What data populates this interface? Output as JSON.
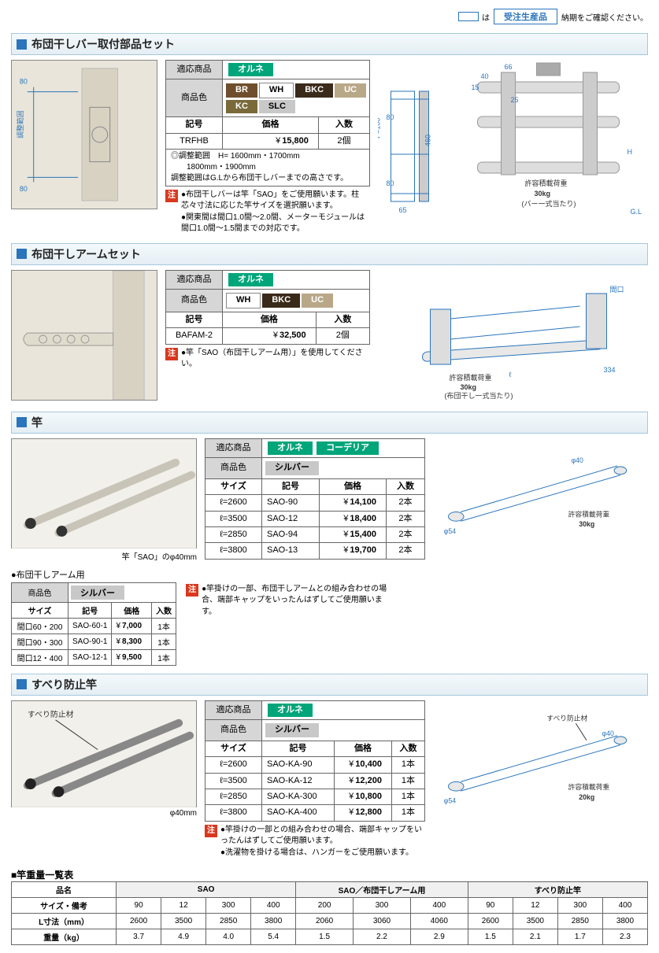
{
  "topNote": {
    "pre": "は",
    "tag": "受注生産品",
    "post": "納期をご確認ください。"
  },
  "sec1": {
    "title": "布団干しバー取付部品セット",
    "applicableLabel": "適応商品",
    "applicable": [
      "オルネ"
    ],
    "colorLabel": "商品色",
    "colors": [
      "BR",
      "WH",
      "BKC",
      "UC",
      "KC",
      "SLC"
    ],
    "colorClasses": [
      "brown",
      "white",
      "dark",
      "beige",
      "khaki",
      "silver"
    ],
    "cols": [
      "記号",
      "価格",
      "入数"
    ],
    "row": {
      "code": "TRFHB",
      "price": "15,800",
      "qty": "2個"
    },
    "range": {
      "label": "◎調整範囲",
      "vals": "H= 1600mm・1700mm\n　　1800mm・1900mm",
      "sub": "調整範囲はG.Lから布団干しバーまでの高さです。"
    },
    "notes": [
      "布団干しバーは竿「SAO」をご使用願います。柱芯々寸法に応じた竿サイズを選択願います。",
      "関東間は間口1.0間～2.0間、メーターモジュールは間口1.0間～1.5間までの対応です。"
    ],
    "dims": {
      "a": "80",
      "b": "80",
      "c": "調整範囲"
    },
    "diag": {
      "w1": "66",
      "w2": "40",
      "w3": "15",
      "w4": "25",
      "h1": "80",
      "h2": "P=100",
      "h3": "460",
      "h4": "80",
      "h5": "65",
      "load": "許容積載荷重",
      "loadV": "30kg",
      "loadNote": "(バー一式当たり)",
      "gl": "G.L",
      "h": "H"
    }
  },
  "sec2": {
    "title": "布団干しアームセット",
    "applicableLabel": "適応商品",
    "applicable": [
      "オルネ"
    ],
    "colorLabel": "商品色",
    "colors": [
      "WH",
      "BKC",
      "UC"
    ],
    "colorClasses": [
      "white",
      "dark",
      "beige"
    ],
    "cols": [
      "記号",
      "価格",
      "入数"
    ],
    "row": {
      "code": "BAFAM-2",
      "price": "32,500",
      "qty": "2個"
    },
    "notes": [
      "竿「SAO（布団干しアーム用）」を使用してください。"
    ],
    "diag": {
      "len": "ℓ",
      "depth": "334",
      "width": "間口",
      "load": "許容積載荷重",
      "loadV": "30kg",
      "loadNote": "(布団干し一式当たり)"
    }
  },
  "sec3": {
    "title": "竿",
    "photoCaption": "竿「SAO」のφ40mm",
    "applicableLabel": "適応商品",
    "applicable": [
      "オルネ",
      "コーデリア"
    ],
    "colorLabel": "商品色",
    "colors": [
      "シルバー"
    ],
    "colorClasses": [
      "silver"
    ],
    "cols": [
      "サイズ",
      "記号",
      "価格",
      "入数"
    ],
    "rows": [
      {
        "size": "ℓ=2600",
        "code": "SAO-90",
        "price": "14,100",
        "qty": "2本"
      },
      {
        "size": "ℓ=3500",
        "code": "SAO-12",
        "price": "18,400",
        "qty": "2本"
      },
      {
        "size": "ℓ=2850",
        "code": "SAO-94",
        "price": "15,400",
        "qty": "2本"
      },
      {
        "size": "ℓ=3800",
        "code": "SAO-13",
        "price": "19,700",
        "qty": "2本"
      }
    ],
    "subHeading": "布団干しアーム用",
    "subColorLabel": "商品色",
    "subColors": [
      "シルバー"
    ],
    "subColorClasses": [
      "silver"
    ],
    "subCols": [
      "サイズ",
      "記号",
      "価格",
      "入数"
    ],
    "subRows": [
      {
        "size": "間口60・200",
        "code": "SAO-60-1",
        "price": "7,000",
        "qty": "1本"
      },
      {
        "size": "間口90・300",
        "code": "SAO-90-1",
        "price": "8,300",
        "qty": "1本"
      },
      {
        "size": "間口12・400",
        "code": "SAO-12-1",
        "price": "9,500",
        "qty": "1本"
      }
    ],
    "notes": [
      "竿掛けの一部、布団干しアームとの組み合わせの場合、端部キャップをいったんはずしてご使用願います。"
    ],
    "diag": {
      "d1": "φ40",
      "d2": "φ54",
      "load": "許容積載荷重",
      "loadV": "30kg"
    }
  },
  "sec4": {
    "title": "すべり防止竿",
    "photoCaption": "φ40mm",
    "photoLabel": "すべり防止材",
    "applicableLabel": "適応商品",
    "applicable": [
      "オルネ"
    ],
    "colorLabel": "商品色",
    "colors": [
      "シルバー"
    ],
    "colorClasses": [
      "silver"
    ],
    "cols": [
      "サイズ",
      "記号",
      "価格",
      "入数"
    ],
    "rows": [
      {
        "size": "ℓ=2600",
        "code": "SAO-KA-90",
        "price": "10,400",
        "qty": "1本"
      },
      {
        "size": "ℓ=3500",
        "code": "SAO-KA-12",
        "price": "12,200",
        "qty": "1本"
      },
      {
        "size": "ℓ=2850",
        "code": "SAO-KA-300",
        "price": "10,800",
        "qty": "1本"
      },
      {
        "size": "ℓ=3800",
        "code": "SAO-KA-400",
        "price": "12,800",
        "qty": "1本"
      }
    ],
    "notes": [
      "竿掛けの一部との組み合わせの場合、端部キャップをいったんはずしてご使用願います。",
      "洗濯物を掛ける場合は、ハンガーをご使用願います。"
    ],
    "diag": {
      "d1": "φ40",
      "d2": "φ54",
      "mat": "すべり防止材",
      "load": "許容積載荷重",
      "loadV": "20kg"
    }
  },
  "weight": {
    "heading": "竿重量一覧表",
    "rowLabels": [
      "品名",
      "サイズ・備考",
      "L寸法（mm）",
      "重量（kg）"
    ],
    "groups": [
      {
        "name": "SAO",
        "sizes": [
          "90",
          "12",
          "300",
          "400"
        ],
        "L": [
          "2600",
          "3500",
          "2850",
          "3800"
        ],
        "kg": [
          "3.7",
          "4.9",
          "4.0",
          "5.4"
        ]
      },
      {
        "name": "SAO／布団干しアーム用",
        "sizes": [
          "200",
          "300",
          "400"
        ],
        "L": [
          "2060",
          "3060",
          "4060"
        ],
        "kg": [
          "1.5",
          "2.2",
          "2.9"
        ]
      },
      {
        "name": "すべり防止竿",
        "sizes": [
          "90",
          "12",
          "300",
          "400"
        ],
        "L": [
          "2600",
          "3500",
          "2850",
          "3800"
        ],
        "kg": [
          "1.5",
          "2.1",
          "1.7",
          "2.3"
        ]
      }
    ]
  },
  "common": {
    "yen": "¥",
    "chu": "注"
  }
}
